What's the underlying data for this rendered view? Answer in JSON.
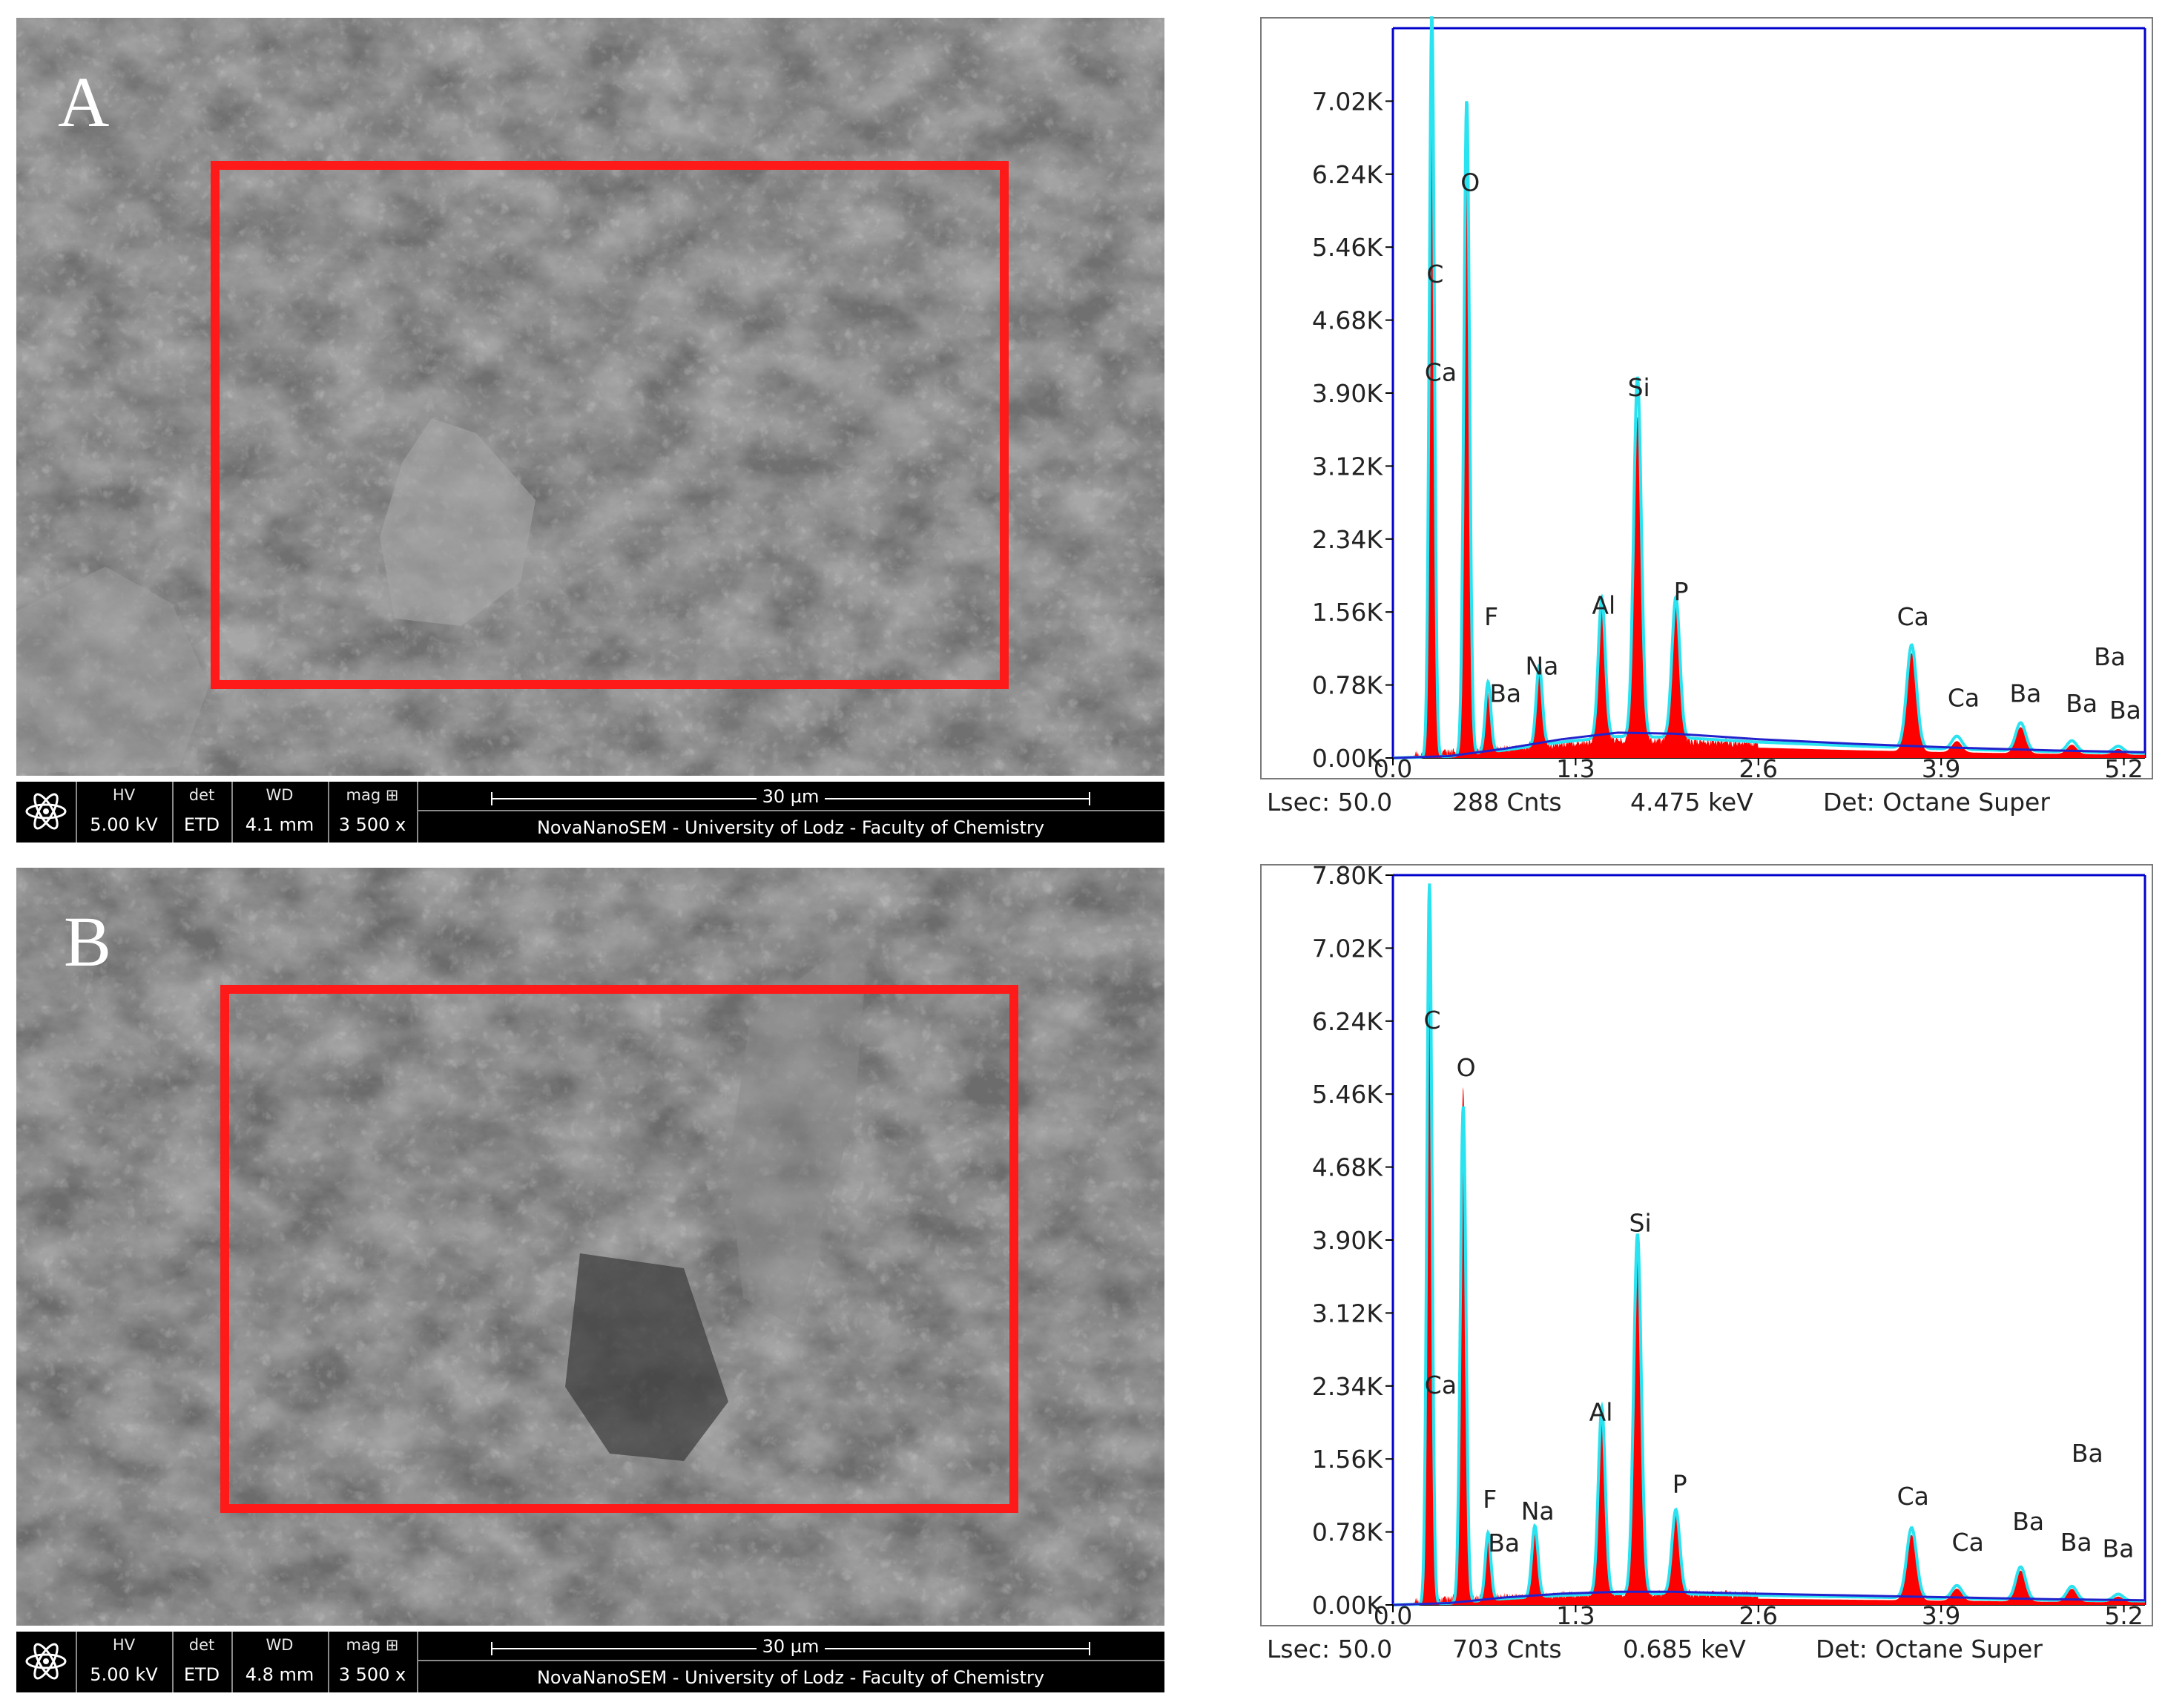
{
  "panels": [
    {
      "id": "A",
      "letter": "A",
      "sem": {
        "hv_label": "HV",
        "hv": "5.00 kV",
        "det_label": "det",
        "det": "ETD",
        "wd_label": "WD",
        "wd": "4.1 mm",
        "mag_label": "mag",
        "mag": "3 500 x",
        "scale": "30 µm",
        "lab": "NovaNanoSEM - University of Lodz - Faculty of Chemistry"
      },
      "eds_footer": {
        "lsec": "Lsec: 50.0",
        "cnts": "288 Cnts",
        "kev": "4.475 keV",
        "det": "Det: Octane Super"
      }
    },
    {
      "id": "B",
      "letter": "B",
      "sem": {
        "hv_label": "HV",
        "hv": "5.00 kV",
        "det_label": "det",
        "det": "ETD",
        "wd_label": "WD",
        "wd": "4.8 mm",
        "mag_label": "mag",
        "mag": "3 500 x",
        "scale": "30 µm",
        "lab": "NovaNanoSEM - University of Lodz - Faculty of Chemistry"
      },
      "eds_footer": {
        "lsec": "Lsec: 50.0",
        "cnts": "703 Cnts",
        "kev": "0.685 keV",
        "det": "Det: Octane Super"
      }
    }
  ],
  "colors": {
    "spectrum_fill": "#ff0000",
    "fit_line": "#29e3f0",
    "background_line": "#2222cc",
    "axis_frame": "#0000cc",
    "roi_box": "#ff1a1a"
  },
  "chart_data": [
    {
      "type": "area",
      "panel": "A",
      "xlim": [
        0.0,
        5.35
      ],
      "ylim": [
        0,
        7.8
      ],
      "xticks": [
        0.0,
        1.3,
        2.6,
        3.9,
        5.2
      ],
      "xtick_labels": [
        "0.0",
        "1.3",
        "2.6",
        "3.9",
        "5.2"
      ],
      "yticks": [
        0,
        0.78,
        1.56,
        2.34,
        3.12,
        3.9,
        4.68,
        5.46,
        6.24,
        7.02
      ],
      "ytick_labels": [
        "0.00K",
        "0.78K",
        "1.56K",
        "2.34K",
        "3.12K",
        "3.90K",
        "4.68K",
        "5.46K",
        "6.24K",
        "7.02K"
      ],
      "peaks": [
        {
          "x": 0.277,
          "h": 7.2,
          "fit": 7.95,
          "w": 0.018
        },
        {
          "x": 0.525,
          "h": 6.2,
          "fit": 7.0,
          "w": 0.02
        },
        {
          "x": 0.677,
          "h": 0.6,
          "fit": 0.75,
          "w": 0.02
        },
        {
          "x": 1.041,
          "h": 0.78,
          "fit": 0.85,
          "w": 0.022
        },
        {
          "x": 1.486,
          "h": 1.42,
          "fit": 1.5,
          "w": 0.025
        },
        {
          "x": 1.74,
          "h": 3.45,
          "fit": 3.85,
          "w": 0.027
        },
        {
          "x": 2.013,
          "h": 1.48,
          "fit": 1.5,
          "w": 0.028
        },
        {
          "x": 3.69,
          "h": 1.05,
          "fit": 1.1,
          "w": 0.035
        },
        {
          "x": 4.012,
          "h": 0.12,
          "fit": 0.14,
          "w": 0.035
        },
        {
          "x": 4.466,
          "h": 0.28,
          "fit": 0.3,
          "w": 0.035
        },
        {
          "x": 4.83,
          "h": 0.1,
          "fit": 0.12,
          "w": 0.035
        },
        {
          "x": 5.16,
          "h": 0.06,
          "fit": 0.07,
          "w": 0.035
        }
      ],
      "background": [
        [
          0.0,
          0.0
        ],
        [
          0.4,
          0.02
        ],
        [
          0.8,
          0.1
        ],
        [
          1.2,
          0.2
        ],
        [
          1.6,
          0.27
        ],
        [
          2.0,
          0.26
        ],
        [
          2.6,
          0.2
        ],
        [
          3.3,
          0.15
        ],
        [
          4.0,
          0.11
        ],
        [
          4.7,
          0.08
        ],
        [
          5.35,
          0.06
        ]
      ],
      "labels": [
        {
          "text": "C",
          "x": 0.3,
          "y": 5.08
        },
        {
          "text": "O",
          "x": 0.55,
          "y": 6.06
        },
        {
          "text": "Ca",
          "x": 0.34,
          "y": 4.03
        },
        {
          "text": "F",
          "x": 0.7,
          "y": 1.42
        },
        {
          "text": "Ba",
          "x": 0.8,
          "y": 0.6
        },
        {
          "text": "Na",
          "x": 1.06,
          "y": 0.89
        },
        {
          "text": "Si",
          "x": 1.75,
          "y": 3.87
        },
        {
          "text": "Al",
          "x": 1.5,
          "y": 1.54
        },
        {
          "text": "P",
          "x": 2.05,
          "y": 1.69
        },
        {
          "text": "Ca",
          "x": 3.7,
          "y": 1.42
        },
        {
          "text": "Ca",
          "x": 4.06,
          "y": 0.55
        },
        {
          "text": "Ba",
          "x": 4.5,
          "y": 0.6
        },
        {
          "text": "Ba",
          "x": 5.1,
          "y": 0.99
        },
        {
          "text": "Ba",
          "x": 4.9,
          "y": 0.49
        },
        {
          "text": "Ba",
          "x": 5.21,
          "y": 0.42
        }
      ]
    },
    {
      "type": "area",
      "panel": "B",
      "xlim": [
        0.0,
        5.35
      ],
      "ylim": [
        0,
        7.8
      ],
      "xticks": [
        0.0,
        1.3,
        2.6,
        3.9,
        5.2
      ],
      "xtick_labels": [
        "0.0",
        "1.3",
        "2.6",
        "3.9",
        "5.2"
      ],
      "yticks": [
        0,
        0.78,
        1.56,
        2.34,
        3.12,
        3.9,
        4.68,
        5.46,
        6.24,
        7.02,
        7.8
      ],
      "ytick_labels": [
        "0.00K",
        "0.78K",
        "1.56K",
        "2.34K",
        "3.12K",
        "3.90K",
        "4.68K",
        "5.46K",
        "6.24K",
        "7.02K",
        "7.80K"
      ],
      "peaks": [
        {
          "x": 0.26,
          "h": 6.4,
          "fit": 7.7,
          "w": 0.018
        },
        {
          "x": 0.5,
          "h": 5.5,
          "fit": 5.3,
          "w": 0.02
        },
        {
          "x": 0.677,
          "h": 0.62,
          "fit": 0.72,
          "w": 0.02
        },
        {
          "x": 1.01,
          "h": 0.7,
          "fit": 0.76,
          "w": 0.022
        },
        {
          "x": 1.486,
          "h": 1.95,
          "fit": 2.0,
          "w": 0.025
        },
        {
          "x": 1.74,
          "h": 3.75,
          "fit": 3.85,
          "w": 0.027
        },
        {
          "x": 2.013,
          "h": 0.85,
          "fit": 0.9,
          "w": 0.028
        },
        {
          "x": 3.69,
          "h": 0.7,
          "fit": 0.75,
          "w": 0.035
        },
        {
          "x": 4.012,
          "h": 0.13,
          "fit": 0.14,
          "w": 0.035
        },
        {
          "x": 4.466,
          "h": 0.33,
          "fit": 0.35,
          "w": 0.035
        },
        {
          "x": 4.83,
          "h": 0.14,
          "fit": 0.15,
          "w": 0.035
        },
        {
          "x": 5.16,
          "h": 0.06,
          "fit": 0.07,
          "w": 0.035
        }
      ],
      "background": [
        [
          0.0,
          0.0
        ],
        [
          0.4,
          0.02
        ],
        [
          0.8,
          0.08
        ],
        [
          1.2,
          0.12
        ],
        [
          1.6,
          0.14
        ],
        [
          2.0,
          0.14
        ],
        [
          2.6,
          0.12
        ],
        [
          3.3,
          0.1
        ],
        [
          4.0,
          0.08
        ],
        [
          4.7,
          0.06
        ],
        [
          5.35,
          0.05
        ]
      ],
      "labels": [
        {
          "text": "C",
          "x": 0.28,
          "y": 6.16
        },
        {
          "text": "O",
          "x": 0.52,
          "y": 5.65
        },
        {
          "text": "Ca",
          "x": 0.34,
          "y": 2.26
        },
        {
          "text": "F",
          "x": 0.69,
          "y": 1.04
        },
        {
          "text": "Ba",
          "x": 0.79,
          "y": 0.57
        },
        {
          "text": "Na",
          "x": 1.03,
          "y": 0.91
        },
        {
          "text": "Si",
          "x": 1.76,
          "y": 3.99
        },
        {
          "text": "Al",
          "x": 1.48,
          "y": 1.97
        },
        {
          "text": "P",
          "x": 2.04,
          "y": 1.2
        },
        {
          "text": "Ca",
          "x": 3.7,
          "y": 1.07
        },
        {
          "text": "Ca",
          "x": 4.09,
          "y": 0.58
        },
        {
          "text": "Ba",
          "x": 4.52,
          "y": 0.8
        },
        {
          "text": "Ba",
          "x": 4.94,
          "y": 1.53
        },
        {
          "text": "Ba",
          "x": 4.86,
          "y": 0.58
        },
        {
          "text": "Ba",
          "x": 5.16,
          "y": 0.51
        }
      ]
    }
  ]
}
